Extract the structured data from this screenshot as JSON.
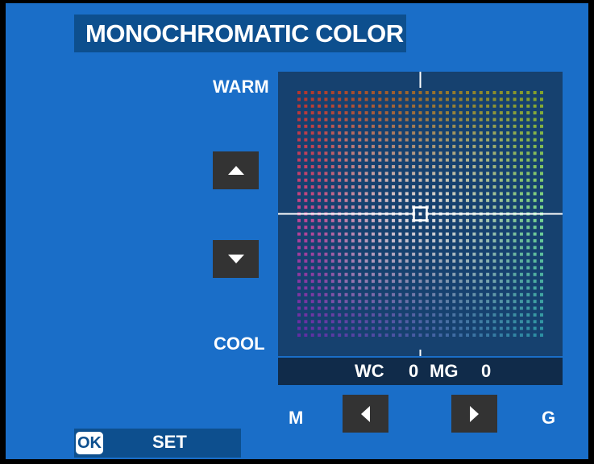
{
  "title": "MONOCHROMATIC COLOR",
  "labels": {
    "warm": "WARM",
    "cool": "COOL",
    "m": "M",
    "g": "G"
  },
  "readout": {
    "wc_label": "WC",
    "wc_value": "0",
    "mg_label": "MG",
    "mg_value": "0"
  },
  "footer": {
    "ok_badge": "OK",
    "set_label": "SET"
  },
  "grid": {
    "steps_per_axis": 37,
    "selected_wc": 0,
    "selected_mg": 0,
    "colors": {
      "warm_magenta": "#ff4a40",
      "warm_green": "#b8e63e",
      "cool_magenta": "#8a3ee6",
      "cool_green": "#3ecbe6",
      "center": "#ffffff"
    }
  },
  "icons": {
    "up": "triangle-up-icon",
    "down": "triangle-down-icon",
    "left": "triangle-left-icon",
    "right": "triangle-right-icon"
  },
  "theme": {
    "background": "#1a6ec8",
    "title_bg": "#0d4f8e",
    "button_bg": "#333333",
    "grid_bg": "#16416f",
    "readout_bg": "#102b4a"
  }
}
